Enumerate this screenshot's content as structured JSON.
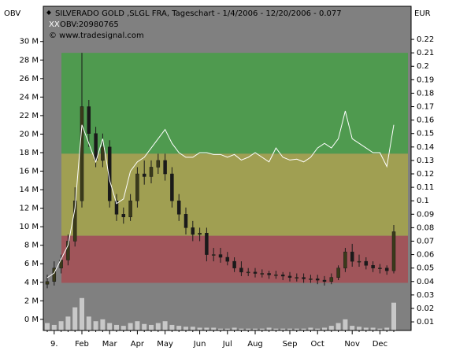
{
  "chart_data": {
    "type": "candlestick",
    "title": "SILVERADO GOLD  ,SLGL FRA, Tageschart - 1/4/2006 - 12/20/2006 - 0.077",
    "subtitle": "OBV:20980765",
    "annotation": "© www.tradesignal.com",
    "y_label": "OBV",
    "y2_label": "EUR",
    "categories": [
      null,
      "9.",
      null,
      null,
      null,
      "Feb",
      null,
      null,
      null,
      "Mar",
      null,
      null,
      null,
      "Apr",
      null,
      null,
      null,
      "May",
      null,
      null,
      null,
      null,
      "Jun",
      null,
      null,
      null,
      "Jul",
      null,
      null,
      null,
      "Aug",
      null,
      null,
      null,
      null,
      "Sep",
      null,
      null,
      null,
      "Oct",
      null,
      null,
      null,
      null,
      "Nov",
      null,
      null,
      null,
      "Dec",
      null,
      null
    ],
    "ylim": [
      -1.2,
      33.8
    ],
    "yticks": [
      {
        "value": 0,
        "label": "0 M"
      },
      {
        "value": 2,
        "label": "2 M"
      },
      {
        "value": 4,
        "label": "4 M"
      },
      {
        "value": 6,
        "label": "6 M"
      },
      {
        "value": 8,
        "label": "8 M"
      },
      {
        "value": 10,
        "label": "10 M"
      },
      {
        "value": 12,
        "label": "12 M"
      },
      {
        "value": 14,
        "label": "14 M"
      },
      {
        "value": 16,
        "label": "16 M"
      },
      {
        "value": 18,
        "label": "18 M"
      },
      {
        "value": 20,
        "label": "20 M"
      },
      {
        "value": 22,
        "label": "22 M"
      },
      {
        "value": 24,
        "label": "24 M"
      },
      {
        "value": 26,
        "label": "26 M"
      },
      {
        "value": 28,
        "label": "28 M"
      },
      {
        "value": 30,
        "label": "30 M"
      }
    ],
    "y2lim": [
      0.0036,
      0.2446
    ],
    "y2ticks": [
      0.01,
      0.02,
      0.03,
      0.04,
      0.05,
      0.06,
      0.07,
      0.08,
      0.09,
      0.1,
      0.11,
      0.12,
      0.13,
      0.14,
      0.15,
      0.16,
      0.17,
      0.18,
      0.19,
      0.2,
      0.21,
      0.22
    ],
    "zones": [
      {
        "from": 0.135,
        "to": 0.21,
        "color": "#4f9a4f"
      },
      {
        "from": 0.074,
        "to": 0.135,
        "color": "#a09f52"
      },
      {
        "from": 0.039,
        "to": 0.074,
        "color": "#a0555a"
      }
    ],
    "ohlc": {
      "axis": "y2",
      "color": "#1a1a1a",
      "open": [
        0.038,
        0.04,
        0.05,
        0.056,
        0.07,
        0.1,
        0.17,
        0.15,
        0.13,
        0.14,
        0.1,
        0.09,
        0.088,
        0.1,
        0.12,
        0.118,
        0.125,
        0.13,
        0.12,
        0.1,
        0.09,
        0.08,
        0.075,
        0.076,
        0.06,
        0.06,
        0.058,
        0.055,
        0.05,
        0.047,
        0.047,
        0.046,
        0.046,
        0.045,
        0.045,
        0.044,
        0.043,
        0.043,
        0.042,
        0.042,
        0.041,
        0.04,
        0.043,
        0.05,
        0.062,
        0.055,
        0.055,
        0.052,
        0.05,
        0.05,
        0.048
      ],
      "high": [
        0.045,
        0.055,
        0.06,
        0.075,
        0.11,
        0.21,
        0.175,
        0.155,
        0.15,
        0.145,
        0.105,
        0.095,
        0.105,
        0.125,
        0.13,
        0.13,
        0.135,
        0.135,
        0.125,
        0.105,
        0.095,
        0.085,
        0.08,
        0.08,
        0.065,
        0.065,
        0.062,
        0.058,
        0.055,
        0.05,
        0.05,
        0.049,
        0.048,
        0.048,
        0.047,
        0.047,
        0.046,
        0.046,
        0.045,
        0.045,
        0.044,
        0.046,
        0.052,
        0.065,
        0.068,
        0.06,
        0.058,
        0.055,
        0.053,
        0.052,
        0.082
      ],
      "low": [
        0.035,
        0.037,
        0.046,
        0.052,
        0.066,
        0.095,
        0.14,
        0.125,
        0.125,
        0.095,
        0.085,
        0.083,
        0.085,
        0.095,
        0.112,
        0.113,
        0.12,
        0.115,
        0.095,
        0.085,
        0.075,
        0.07,
        0.07,
        0.055,
        0.055,
        0.054,
        0.052,
        0.047,
        0.044,
        0.044,
        0.043,
        0.043,
        0.042,
        0.042,
        0.041,
        0.04,
        0.04,
        0.039,
        0.039,
        0.038,
        0.037,
        0.038,
        0.041,
        0.047,
        0.051,
        0.051,
        0.049,
        0.047,
        0.046,
        0.045,
        0.046
      ],
      "close": [
        0.04,
        0.05,
        0.056,
        0.07,
        0.1,
        0.17,
        0.15,
        0.13,
        0.14,
        0.1,
        0.09,
        0.088,
        0.1,
        0.12,
        0.118,
        0.125,
        0.13,
        0.12,
        0.1,
        0.09,
        0.08,
        0.075,
        0.076,
        0.06,
        0.06,
        0.058,
        0.055,
        0.05,
        0.047,
        0.047,
        0.046,
        0.046,
        0.045,
        0.045,
        0.044,
        0.043,
        0.043,
        0.042,
        0.042,
        0.041,
        0.04,
        0.043,
        0.05,
        0.062,
        0.055,
        0.055,
        0.052,
        0.05,
        0.05,
        0.048,
        0.077
      ]
    },
    "obv": {
      "color": "#ffffff",
      "values": [
        4.5,
        5,
        6.5,
        8,
        12,
        21,
        19,
        17,
        19.5,
        15,
        12.5,
        13,
        16,
        17,
        17.5,
        18.5,
        19.5,
        20.5,
        19,
        18,
        17.5,
        17.5,
        18,
        18,
        17.8,
        17.8,
        17.5,
        17.8,
        17.2,
        17.5,
        18,
        17.5,
        17,
        18.5,
        17.5,
        17.2,
        17.3,
        17,
        17.5,
        18.5,
        19,
        18.5,
        19.5,
        22.5,
        19.5,
        19,
        18.5,
        18,
        18,
        16.5,
        21
      ]
    },
    "volume": {
      "color": "#c8c8c8",
      "values": [
        0.8,
        0.6,
        1,
        1.5,
        2.5,
        3.5,
        1.5,
        1,
        1.2,
        0.8,
        0.6,
        0.5,
        0.8,
        1,
        0.7,
        0.6,
        0.8,
        1,
        0.6,
        0.5,
        0.4,
        0.4,
        0.3,
        0.3,
        0.3,
        0.2,
        0.2,
        0.3,
        0.2,
        0.2,
        0.2,
        0.2,
        0.3,
        0.2,
        0.2,
        0.2,
        0.2,
        0.2,
        0.3,
        0.2,
        0.3,
        0.5,
        0.8,
        1.2,
        0.5,
        0.4,
        0.3,
        0.3,
        0.2,
        0.3,
        3
      ]
    },
    "plot_background": "#808080"
  }
}
